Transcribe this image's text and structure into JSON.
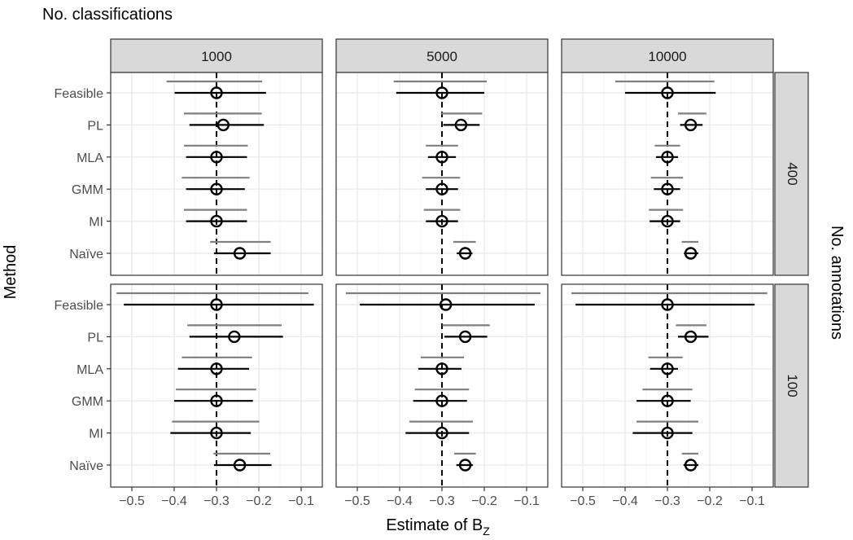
{
  "chart_data": {
    "type": "interval-dot",
    "title": "No. classifications",
    "xlabel": "Estimate of B",
    "xlabel_sub": "Z",
    "ylabel": "Method",
    "facet_row_title": "No. annotations",
    "xlim": [
      -0.55,
      -0.05
    ],
    "x_ticks": [
      -0.5,
      -0.4,
      -0.3,
      -0.2,
      -0.1
    ],
    "x_tick_labels": [
      "−0.5",
      "−0.4",
      "−0.3",
      "−0.2",
      "−0.1"
    ],
    "reference_line": -0.3,
    "methods": [
      "Feasible",
      "PL",
      "MLA",
      "GMM",
      "MI",
      "Naïve"
    ],
    "column_facets": [
      "1000",
      "5000",
      "10000"
    ],
    "row_facets": [
      "400",
      "100"
    ],
    "colors": {
      "strip_bg": "#d9d9d9",
      "strip_border": "#333333",
      "panel_border": "#333333",
      "grid_major": "#ebebeb",
      "grid_minor": "#f5f5f5",
      "interval_outer": "#7f7f7f",
      "interval_inner": "#000000"
    },
    "panels": [
      {
        "row": "400",
        "col": "1000",
        "points": [
          {
            "method": "Feasible",
            "estimate": -0.3,
            "ci_low": -0.399,
            "ci_high": -0.183,
            "ci2_low": -0.418,
            "ci2_high": -0.192
          },
          {
            "method": "PL",
            "estimate": -0.284,
            "ci_low": -0.364,
            "ci_high": -0.188,
            "ci2_low": -0.377,
            "ci2_high": -0.193
          },
          {
            "method": "MLA",
            "estimate": -0.3,
            "ci_low": -0.372,
            "ci_high": -0.228,
            "ci2_low": -0.377,
            "ci2_high": -0.226
          },
          {
            "method": "GMM",
            "estimate": -0.3,
            "ci_low": -0.372,
            "ci_high": -0.233,
            "ci2_low": -0.382,
            "ci2_high": -0.222
          },
          {
            "method": "MI",
            "estimate": -0.3,
            "ci_low": -0.372,
            "ci_high": -0.228,
            "ci2_low": -0.377,
            "ci2_high": -0.228
          },
          {
            "method": "Naïve",
            "estimate": -0.245,
            "ci_low": -0.306,
            "ci_high": -0.172,
            "ci2_low": -0.315,
            "ci2_high": -0.172
          }
        ]
      },
      {
        "row": "400",
        "col": "5000",
        "points": [
          {
            "method": "Feasible",
            "estimate": -0.3,
            "ci_low": -0.408,
            "ci_high": -0.2,
            "ci2_low": -0.414,
            "ci2_high": -0.194
          },
          {
            "method": "PL",
            "estimate": -0.255,
            "ci_low": -0.297,
            "ci_high": -0.211,
            "ci2_low": -0.302,
            "ci2_high": -0.205
          },
          {
            "method": "MLA",
            "estimate": -0.3,
            "ci_low": -0.333,
            "ci_high": -0.267,
            "ci2_low": -0.338,
            "ci2_high": -0.262
          },
          {
            "method": "GMM",
            "estimate": -0.3,
            "ci_low": -0.338,
            "ci_high": -0.262,
            "ci2_low": -0.347,
            "ci2_high": -0.257
          },
          {
            "method": "MI",
            "estimate": -0.3,
            "ci_low": -0.338,
            "ci_high": -0.262,
            "ci2_low": -0.343,
            "ci2_high": -0.257
          },
          {
            "method": "Naïve",
            "estimate": -0.245,
            "ci_low": -0.265,
            "ci_high": -0.228,
            "ci2_low": -0.273,
            "ci2_high": -0.22
          }
        ]
      },
      {
        "row": "400",
        "col": "10000",
        "points": [
          {
            "method": "Feasible",
            "estimate": -0.3,
            "ci_low": -0.4,
            "ci_high": -0.186,
            "ci2_low": -0.423,
            "ci2_high": -0.189
          },
          {
            "method": "PL",
            "estimate": -0.245,
            "ci_low": -0.27,
            "ci_high": -0.217,
            "ci2_low": -0.275,
            "ci2_high": -0.208
          },
          {
            "method": "MLA",
            "estimate": -0.3,
            "ci_low": -0.327,
            "ci_high": -0.275,
            "ci2_low": -0.33,
            "ci2_high": -0.27
          },
          {
            "method": "GMM",
            "estimate": -0.3,
            "ci_low": -0.332,
            "ci_high": -0.27,
            "ci2_low": -0.339,
            "ci2_high": -0.263
          },
          {
            "method": "MI",
            "estimate": -0.3,
            "ci_low": -0.342,
            "ci_high": -0.27,
            "ci2_low": -0.344,
            "ci2_high": -0.263
          },
          {
            "method": "Naïve",
            "estimate": -0.245,
            "ci_low": -0.261,
            "ci_high": -0.227,
            "ci2_low": -0.266,
            "ci2_high": -0.227
          }
        ]
      },
      {
        "row": "100",
        "col": "1000",
        "points": [
          {
            "method": "Feasible",
            "estimate": -0.3,
            "ci_low": -0.519,
            "ci_high": -0.07,
            "ci2_low": -0.536,
            "ci2_high": -0.083
          },
          {
            "method": "PL",
            "estimate": -0.258,
            "ci_low": -0.364,
            "ci_high": -0.143,
            "ci2_low": -0.369,
            "ci2_high": -0.146
          },
          {
            "method": "MLA",
            "estimate": -0.3,
            "ci_low": -0.391,
            "ci_high": -0.223,
            "ci2_low": -0.382,
            "ci2_high": -0.216
          },
          {
            "method": "GMM",
            "estimate": -0.3,
            "ci_low": -0.4,
            "ci_high": -0.214,
            "ci2_low": -0.396,
            "ci2_high": -0.206
          },
          {
            "method": "MI",
            "estimate": -0.3,
            "ci_low": -0.409,
            "ci_high": -0.219,
            "ci2_low": -0.405,
            "ci2_high": -0.199
          },
          {
            "method": "Naïve",
            "estimate": -0.245,
            "ci_low": -0.306,
            "ci_high": -0.17,
            "ci2_low": -0.307,
            "ci2_high": -0.173
          }
        ]
      },
      {
        "row": "100",
        "col": "5000",
        "points": [
          {
            "method": "Feasible",
            "estimate": -0.291,
            "ci_low": -0.494,
            "ci_high": -0.081,
            "ci2_low": -0.527,
            "ci2_high": -0.067
          },
          {
            "method": "PL",
            "estimate": -0.245,
            "ci_low": -0.294,
            "ci_high": -0.193,
            "ci2_low": -0.299,
            "ci2_high": -0.187
          },
          {
            "method": "MLA",
            "estimate": -0.3,
            "ci_low": -0.356,
            "ci_high": -0.254,
            "ci2_low": -0.35,
            "ci2_high": -0.248
          },
          {
            "method": "GMM",
            "estimate": -0.3,
            "ci_low": -0.368,
            "ci_high": -0.241,
            "ci2_low": -0.364,
            "ci2_high": -0.236
          },
          {
            "method": "MI",
            "estimate": -0.3,
            "ci_low": -0.386,
            "ci_high": -0.236,
            "ci2_low": -0.377,
            "ci2_high": -0.227
          },
          {
            "method": "Naïve",
            "estimate": -0.245,
            "ci_low": -0.266,
            "ci_high": -0.227,
            "ci2_low": -0.271,
            "ci2_high": -0.22
          }
        ]
      },
      {
        "row": "100",
        "col": "10000",
        "points": [
          {
            "method": "Feasible",
            "estimate": -0.3,
            "ci_low": -0.517,
            "ci_high": -0.094,
            "ci2_low": -0.527,
            "ci2_high": -0.064
          },
          {
            "method": "PL",
            "estimate": -0.245,
            "ci_low": -0.275,
            "ci_high": -0.203,
            "ci2_low": -0.28,
            "ci2_high": -0.208
          },
          {
            "method": "MLA",
            "estimate": -0.3,
            "ci_low": -0.341,
            "ci_high": -0.275,
            "ci2_low": -0.345,
            "ci2_high": -0.264
          },
          {
            "method": "GMM",
            "estimate": -0.3,
            "ci_low": -0.373,
            "ci_high": -0.245,
            "ci2_low": -0.359,
            "ci2_high": -0.241
          },
          {
            "method": "MI",
            "estimate": -0.3,
            "ci_low": -0.382,
            "ci_high": -0.241,
            "ci2_low": -0.373,
            "ci2_high": -0.227
          },
          {
            "method": "Naïve",
            "estimate": -0.245,
            "ci_low": -0.262,
            "ci_high": -0.227,
            "ci2_low": -0.266,
            "ci2_high": -0.227
          }
        ]
      }
    ]
  }
}
